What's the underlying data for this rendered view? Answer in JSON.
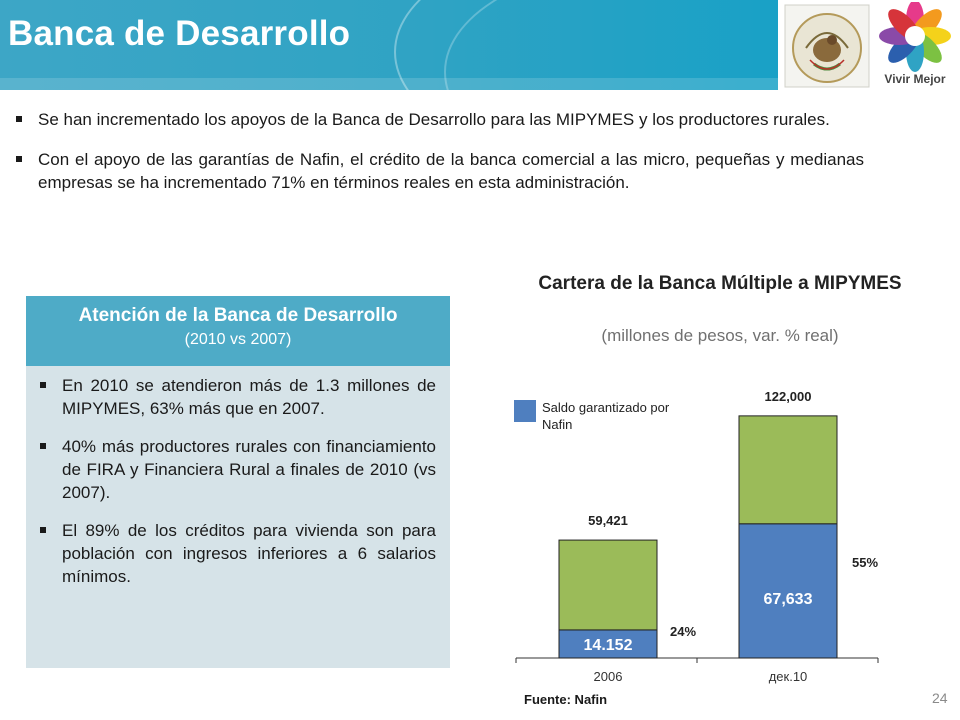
{
  "header": {
    "title": "Banca de Desarrollo",
    "logo_text": "Vivir Mejor"
  },
  "bullets": [
    "Se han incrementado los apoyos de la Banca de Desarrollo para las MIPYMES y los productores rurales.",
    "Con el apoyo de las garantías de Nafin, el crédito de la banca comercial a las micro, pequeñas y medianas empresas se ha incrementado 71% en términos reales en esta administración."
  ],
  "box": {
    "title": "Atención de la Banca de Desarrollo",
    "subtitle": "(2010 vs 2007)",
    "bullets": [
      "En 2010 se atendieron más de 1.3 millones de MIPYMES, 63% más que en 2007.",
      "40% más productores rurales con financiamiento de FIRA y Financiera Rural a finales de 2010 (vs 2007).",
      "El 89% de los créditos para vivienda son para población con ingresos inferiores a 6 salarios mínimos."
    ]
  },
  "chart_heading": {
    "title": "Cartera de la Banca Múltiple a MIPYMES",
    "subtitle": "(millones de pesos, var. % real)"
  },
  "chart_data": {
    "type": "bar",
    "stacked": true,
    "categories": [
      "2006",
      "дек.10"
    ],
    "series": [
      {
        "name": "Saldo garantizado por Nafin",
        "color": "#4f7fbf",
        "values": [
          14152,
          67633
        ],
        "labels": [
          "14.152",
          "67,633"
        ]
      },
      {
        "color": "#9bbb59",
        "values": [
          45269,
          54367
        ]
      }
    ],
    "totals": [
      59421,
      122000
    ],
    "total_labels": [
      "59,421",
      "122,000"
    ],
    "share_labels": [
      "24%",
      "55%"
    ],
    "ylim": [
      0,
      130000
    ],
    "legend": "top-left",
    "grid": false
  },
  "source": "Fuente: Nafin",
  "page_number": "24",
  "colors": {
    "header_band": "#2fa3c4",
    "box_header": "#4eabc7",
    "box_body": "#d6e3e8",
    "bar_blue": "#4f7fbf",
    "bar_green": "#9bbb59"
  }
}
